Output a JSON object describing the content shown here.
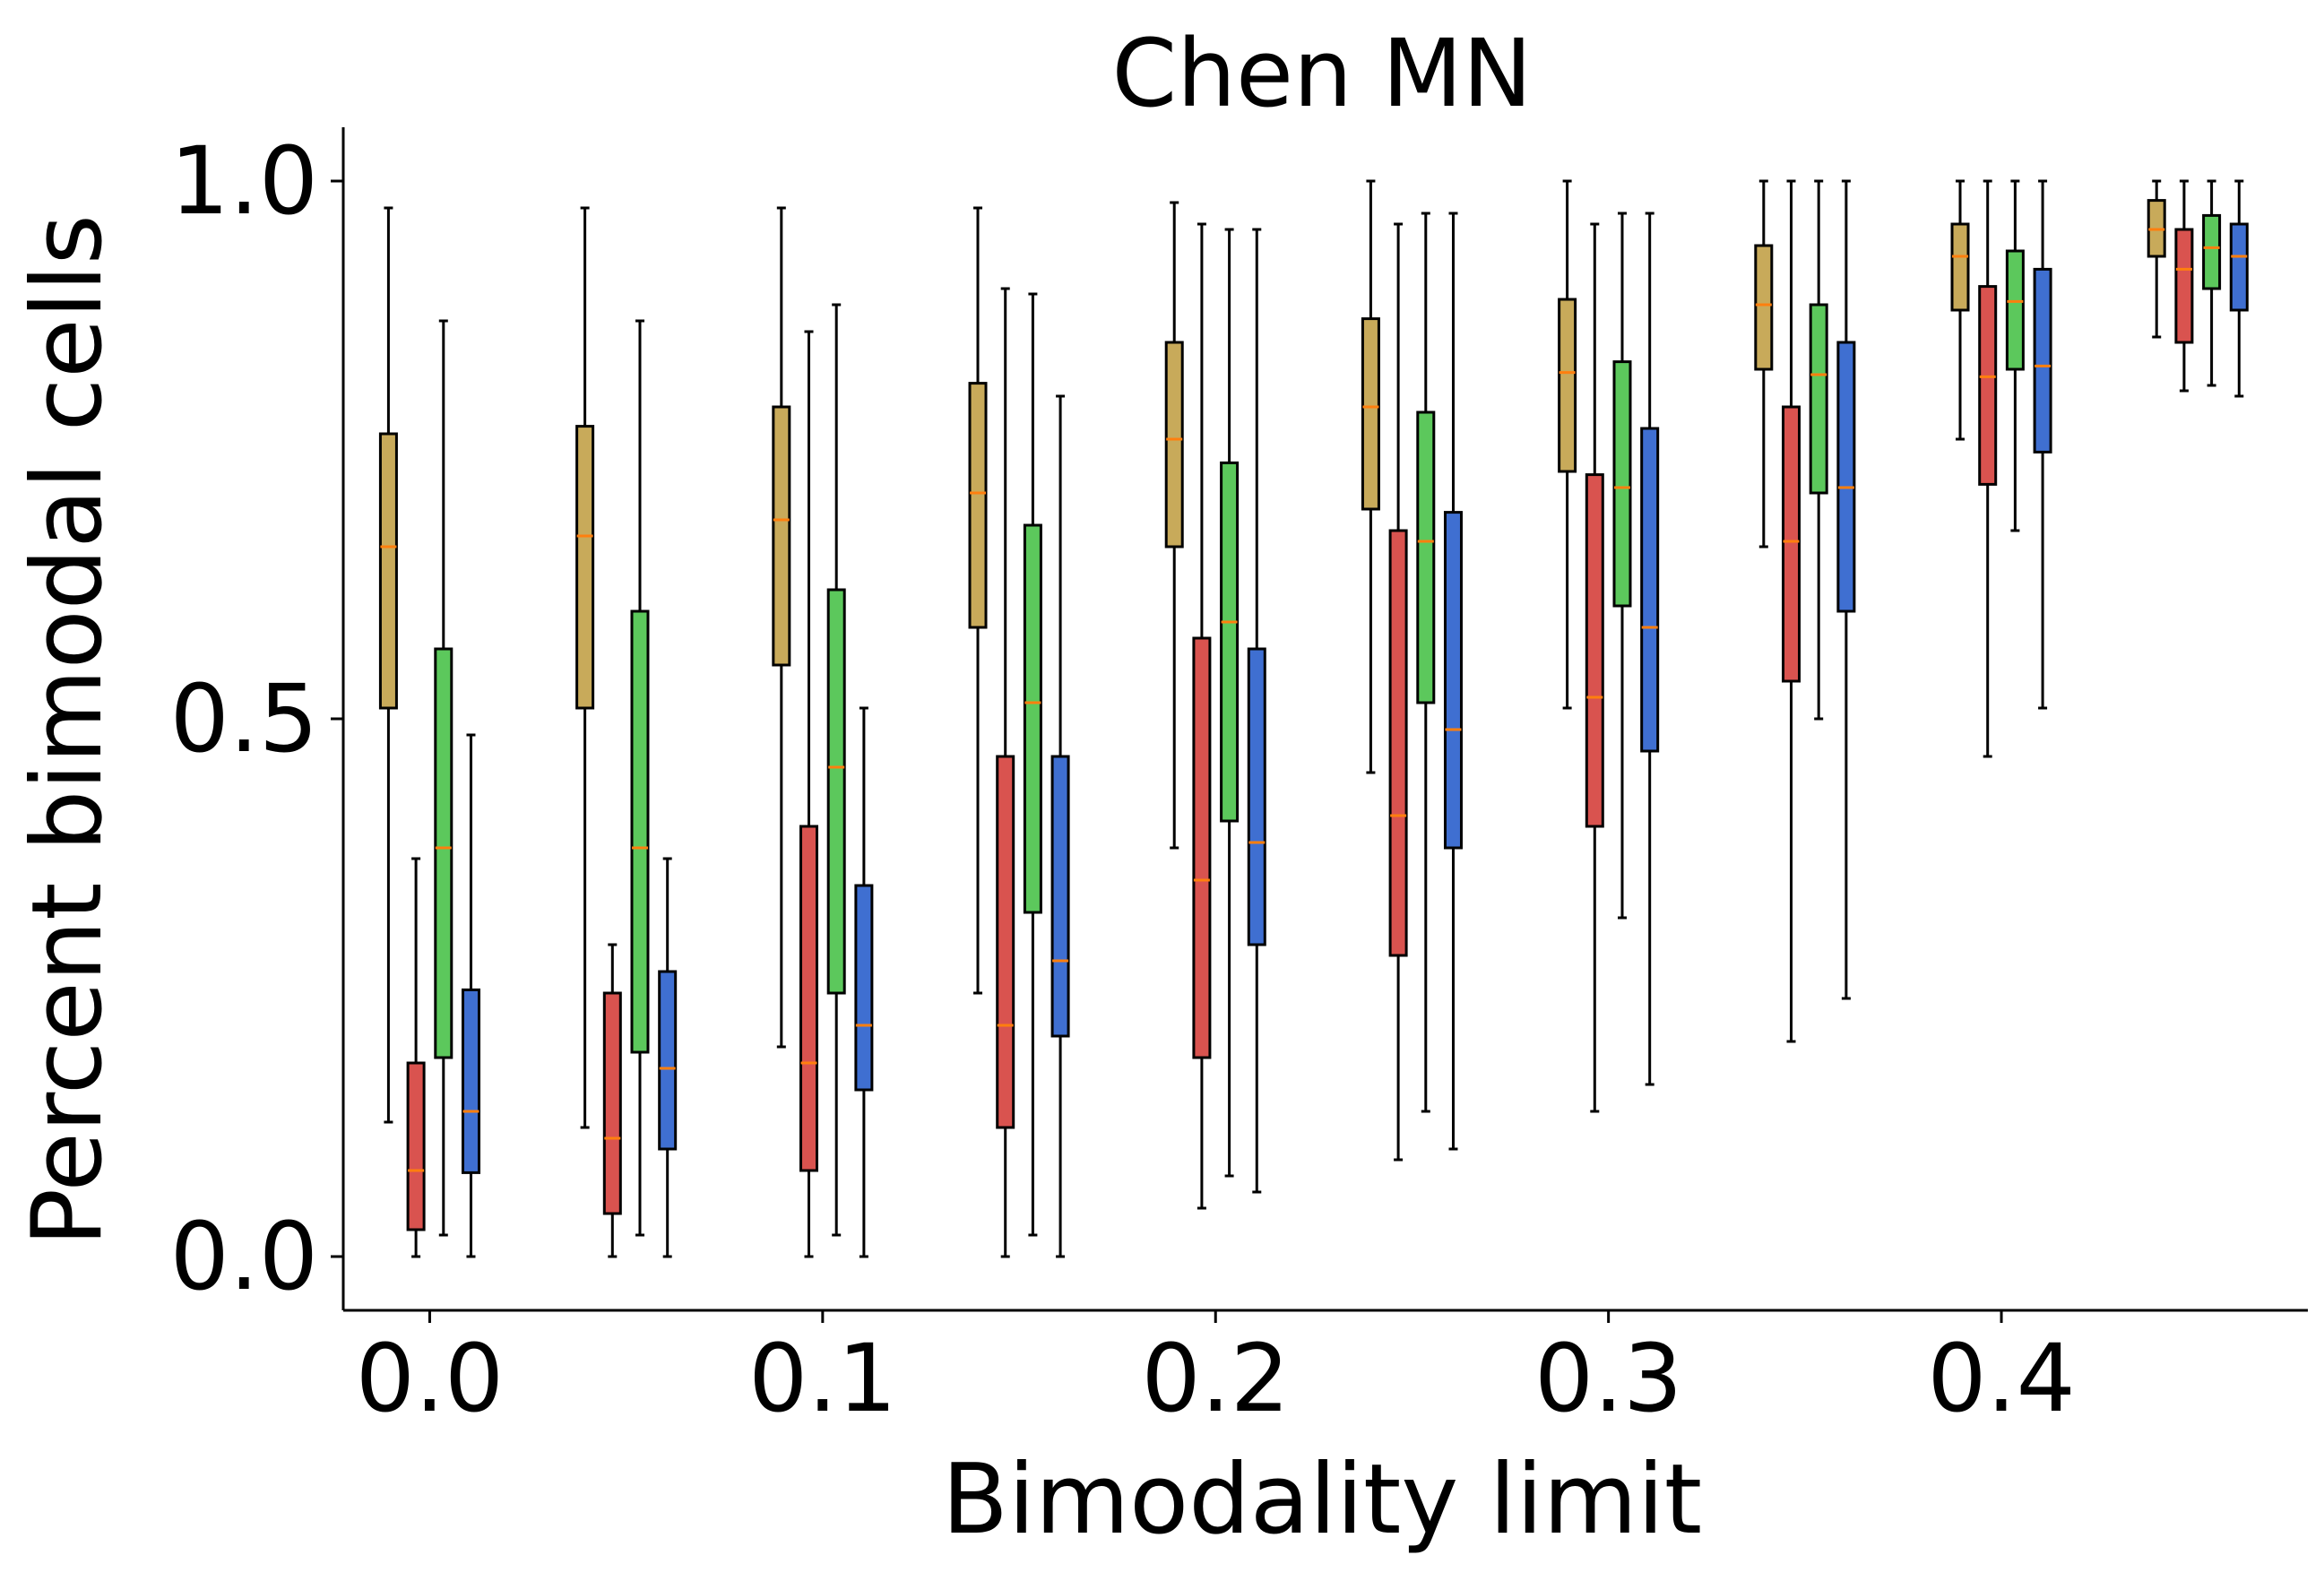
{
  "chart_data": {
    "type": "box",
    "title": "Chen MN",
    "xlabel": "Bimodality limit",
    "ylabel": "Percent bimodal cells",
    "xlim": [
      -0.022,
      0.478
    ],
    "ylim": [
      -0.05,
      1.05
    ],
    "xticks": [
      0.0,
      0.1,
      0.2,
      0.3,
      0.4
    ],
    "xtick_labels": [
      "0.0",
      "0.1",
      "0.2",
      "0.3",
      "0.4"
    ],
    "yticks": [
      0.0,
      0.5,
      1.0
    ],
    "ytick_labels": [
      "0.0",
      "0.5",
      "1.0"
    ],
    "grid": false,
    "median_color": "#ff7f0e",
    "series": [
      {
        "color": "#c8aa5a",
        "offset": -0.0105,
        "boxes": [
          {
            "x": 0.0,
            "whislo": 0.125,
            "q1": 0.51,
            "med": 0.66,
            "q3": 0.765,
            "whishi": 0.975
          },
          {
            "x": 0.05,
            "whislo": 0.12,
            "q1": 0.51,
            "med": 0.67,
            "q3": 0.772,
            "whishi": 0.975
          },
          {
            "x": 0.1,
            "whislo": 0.195,
            "q1": 0.55,
            "med": 0.685,
            "q3": 0.79,
            "whishi": 0.975
          },
          {
            "x": 0.15,
            "whislo": 0.245,
            "q1": 0.585,
            "med": 0.71,
            "q3": 0.812,
            "whishi": 0.975
          },
          {
            "x": 0.2,
            "whislo": 0.38,
            "q1": 0.66,
            "med": 0.76,
            "q3": 0.85,
            "whishi": 0.98
          },
          {
            "x": 0.25,
            "whislo": 0.45,
            "q1": 0.695,
            "med": 0.79,
            "q3": 0.872,
            "whishi": 1.0
          },
          {
            "x": 0.3,
            "whislo": 0.51,
            "q1": 0.73,
            "med": 0.822,
            "q3": 0.89,
            "whishi": 1.0
          },
          {
            "x": 0.35,
            "whislo": 0.66,
            "q1": 0.825,
            "med": 0.885,
            "q3": 0.94,
            "whishi": 1.0
          },
          {
            "x": 0.4,
            "whislo": 0.76,
            "q1": 0.88,
            "med": 0.93,
            "q3": 0.96,
            "whishi": 1.0
          },
          {
            "x": 0.45,
            "whislo": 0.855,
            "q1": 0.93,
            "med": 0.955,
            "q3": 0.982,
            "whishi": 1.0
          }
        ]
      },
      {
        "color": "#d9534f",
        "offset": -0.0035,
        "boxes": [
          {
            "x": 0.0,
            "whislo": 0.0,
            "q1": 0.025,
            "med": 0.08,
            "q3": 0.18,
            "whishi": 0.37
          },
          {
            "x": 0.05,
            "whislo": 0.0,
            "q1": 0.04,
            "med": 0.11,
            "q3": 0.245,
            "whishi": 0.29
          },
          {
            "x": 0.1,
            "whislo": 0.0,
            "q1": 0.08,
            "med": 0.18,
            "q3": 0.4,
            "whishi": 0.86
          },
          {
            "x": 0.15,
            "whislo": 0.0,
            "q1": 0.12,
            "med": 0.215,
            "q3": 0.465,
            "whishi": 0.9
          },
          {
            "x": 0.2,
            "whislo": 0.045,
            "q1": 0.185,
            "med": 0.35,
            "q3": 0.575,
            "whishi": 0.96
          },
          {
            "x": 0.25,
            "whislo": 0.09,
            "q1": 0.28,
            "med": 0.41,
            "q3": 0.675,
            "whishi": 0.96
          },
          {
            "x": 0.3,
            "whislo": 0.135,
            "q1": 0.4,
            "med": 0.52,
            "q3": 0.727,
            "whishi": 0.96
          },
          {
            "x": 0.35,
            "whislo": 0.2,
            "q1": 0.535,
            "med": 0.665,
            "q3": 0.79,
            "whishi": 1.0
          },
          {
            "x": 0.4,
            "whislo": 0.465,
            "q1": 0.718,
            "med": 0.818,
            "q3": 0.902,
            "whishi": 1.0
          },
          {
            "x": 0.45,
            "whislo": 0.805,
            "q1": 0.85,
            "med": 0.918,
            "q3": 0.955,
            "whishi": 1.0
          }
        ]
      },
      {
        "color": "#5cc85c",
        "offset": 0.0035,
        "boxes": [
          {
            "x": 0.0,
            "whislo": 0.02,
            "q1": 0.185,
            "med": 0.38,
            "q3": 0.565,
            "whishi": 0.87
          },
          {
            "x": 0.05,
            "whislo": 0.02,
            "q1": 0.19,
            "med": 0.38,
            "q3": 0.6,
            "whishi": 0.87
          },
          {
            "x": 0.1,
            "whislo": 0.02,
            "q1": 0.245,
            "med": 0.455,
            "q3": 0.62,
            "whishi": 0.885
          },
          {
            "x": 0.15,
            "whislo": 0.02,
            "q1": 0.32,
            "med": 0.515,
            "q3": 0.68,
            "whishi": 0.895
          },
          {
            "x": 0.2,
            "whislo": 0.075,
            "q1": 0.405,
            "med": 0.59,
            "q3": 0.738,
            "whishi": 0.955
          },
          {
            "x": 0.25,
            "whislo": 0.135,
            "q1": 0.515,
            "med": 0.665,
            "q3": 0.785,
            "whishi": 0.97
          },
          {
            "x": 0.3,
            "whislo": 0.315,
            "q1": 0.605,
            "med": 0.715,
            "q3": 0.832,
            "whishi": 0.97
          },
          {
            "x": 0.35,
            "whislo": 0.5,
            "q1": 0.71,
            "med": 0.82,
            "q3": 0.885,
            "whishi": 1.0
          },
          {
            "x": 0.4,
            "whislo": 0.675,
            "q1": 0.825,
            "med": 0.888,
            "q3": 0.935,
            "whishi": 1.0
          },
          {
            "x": 0.45,
            "whislo": 0.81,
            "q1": 0.9,
            "med": 0.938,
            "q3": 0.968,
            "whishi": 1.0
          }
        ]
      },
      {
        "color": "#3f6fd1",
        "offset": 0.0105,
        "boxes": [
          {
            "x": 0.0,
            "whislo": 0.0,
            "q1": 0.078,
            "med": 0.135,
            "q3": 0.248,
            "whishi": 0.485
          },
          {
            "x": 0.05,
            "whislo": 0.0,
            "q1": 0.1,
            "med": 0.175,
            "q3": 0.265,
            "whishi": 0.37
          },
          {
            "x": 0.1,
            "whislo": 0.0,
            "q1": 0.155,
            "med": 0.215,
            "q3": 0.345,
            "whishi": 0.51
          },
          {
            "x": 0.15,
            "whislo": 0.0,
            "q1": 0.205,
            "med": 0.275,
            "q3": 0.465,
            "whishi": 0.8
          },
          {
            "x": 0.2,
            "whislo": 0.06,
            "q1": 0.29,
            "med": 0.385,
            "q3": 0.565,
            "whishi": 0.955
          },
          {
            "x": 0.25,
            "whislo": 0.1,
            "q1": 0.38,
            "med": 0.49,
            "q3": 0.692,
            "whishi": 0.97
          },
          {
            "x": 0.3,
            "whislo": 0.16,
            "q1": 0.47,
            "med": 0.585,
            "q3": 0.77,
            "whishi": 0.97
          },
          {
            "x": 0.35,
            "whislo": 0.24,
            "q1": 0.6,
            "med": 0.715,
            "q3": 0.85,
            "whishi": 1.0
          },
          {
            "x": 0.4,
            "whislo": 0.51,
            "q1": 0.748,
            "med": 0.828,
            "q3": 0.918,
            "whishi": 1.0
          },
          {
            "x": 0.45,
            "whislo": 0.8,
            "q1": 0.88,
            "med": 0.93,
            "q3": 0.96,
            "whishi": 1.0
          }
        ]
      }
    ]
  }
}
